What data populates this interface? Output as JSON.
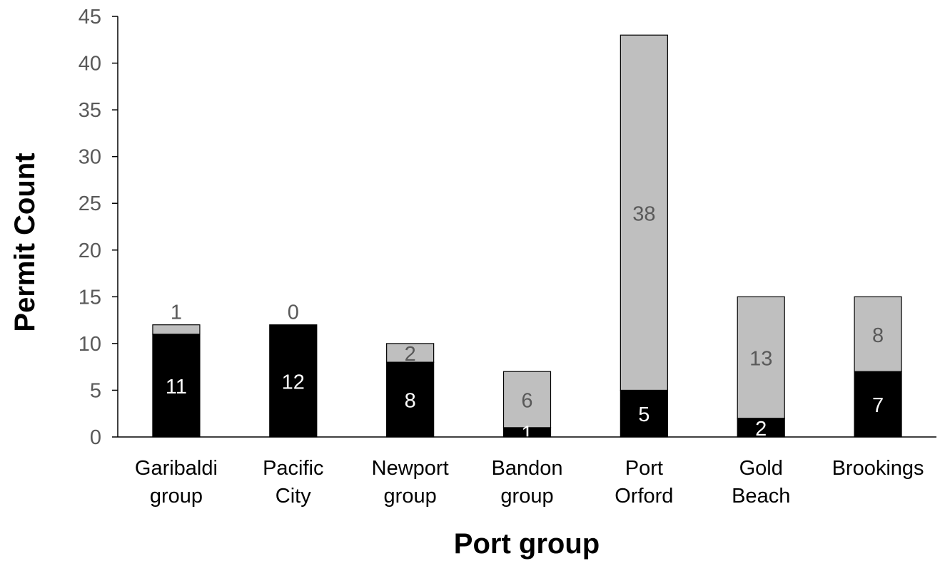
{
  "chart_data": {
    "type": "bar",
    "stacked": true,
    "categories": [
      [
        "Garibaldi",
        "group"
      ],
      [
        "Pacific",
        "City"
      ],
      [
        "Newport",
        "group"
      ],
      [
        "Bandon",
        "group"
      ],
      [
        "Port",
        "Orford"
      ],
      [
        "Gold",
        "Beach"
      ],
      [
        "Brookings"
      ]
    ],
    "series": [
      {
        "values": [
          11,
          12,
          8,
          1,
          5,
          2,
          7
        ],
        "color": "#000000",
        "label_color": "#ffffff"
      },
      {
        "values": [
          1,
          0,
          2,
          6,
          38,
          13,
          8
        ],
        "color": "#bfbfbf",
        "label_color": "#595959"
      }
    ],
    "xlabel": "Port group",
    "ylabel": "Permit Count",
    "ylim": [
      0,
      45
    ],
    "yticks": [
      0,
      5,
      10,
      15,
      20,
      25,
      30,
      35,
      40,
      45
    ],
    "grid": false,
    "legend": false
  }
}
